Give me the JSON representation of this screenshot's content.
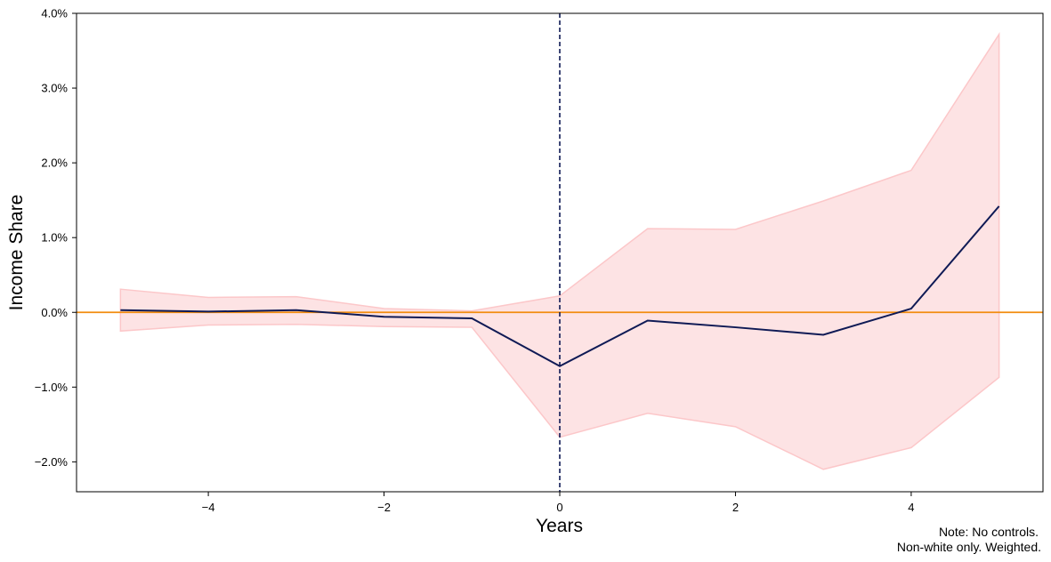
{
  "chart_data": {
    "type": "line",
    "title": "",
    "xlabel": "Years",
    "ylabel": "Income Share",
    "xlim": [
      -5.5,
      5.5
    ],
    "ylim": [
      -2.4,
      4.0
    ],
    "xticks": [
      -4,
      -2,
      0,
      2,
      4
    ],
    "xtick_labels": [
      "−4",
      "−2",
      "0",
      "2",
      "4"
    ],
    "yticks": [
      -2.0,
      -1.0,
      0.0,
      1.0,
      2.0,
      3.0,
      4.0
    ],
    "ytick_labels": [
      "−2.0%",
      "−1.0%",
      "0.0%",
      "1.0%",
      "2.0%",
      "3.0%",
      "4.0%"
    ],
    "x": [
      -5,
      -4,
      -3,
      -2,
      -1,
      0,
      1,
      2,
      3,
      4,
      5
    ],
    "series": [
      {
        "values": [
          0.03,
          0.01,
          0.03,
          -0.06,
          -0.08,
          -0.72,
          -0.11,
          -0.2,
          -0.3,
          0.05,
          1.42
        ],
        "ci_lower": [
          -0.25,
          -0.17,
          -0.16,
          -0.19,
          -0.2,
          -1.67,
          -1.35,
          -1.53,
          -2.1,
          -1.81,
          -0.87
        ],
        "ci_upper": [
          0.31,
          0.2,
          0.21,
          0.05,
          0.02,
          0.22,
          1.12,
          1.11,
          1.49,
          1.9,
          3.72
        ],
        "color": "#0f1a55",
        "ci_color": "#fcc7c9"
      }
    ],
    "reference_lines": {
      "horizontal_y": 0,
      "horizontal_color": "#f28c0f",
      "vertical_x": 0,
      "vertical_color": "#0f1a55",
      "vertical_style": "dashed"
    },
    "grid": false,
    "note_lines": [
      "Note: No controls.",
      "Non-white only. Weighted."
    ]
  }
}
